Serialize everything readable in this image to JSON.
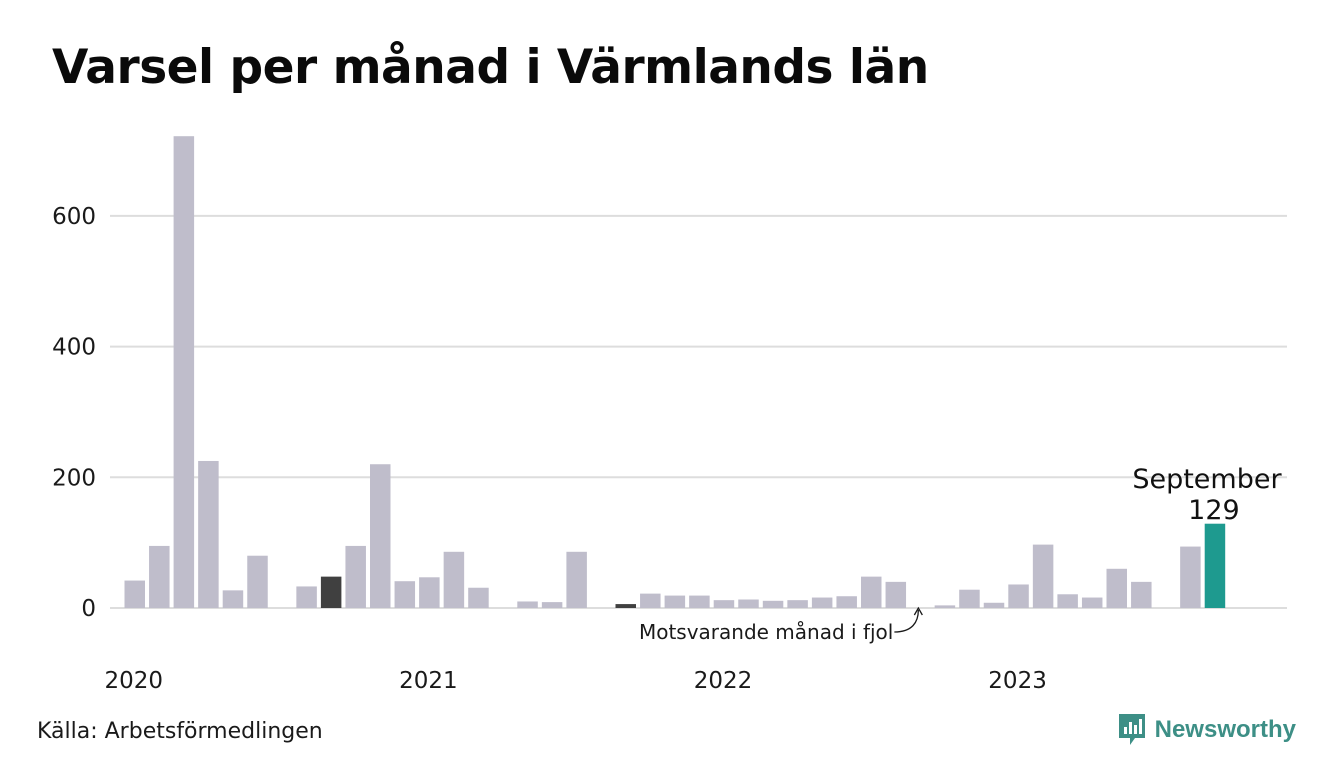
{
  "title": "Varsel per månad i Värmlands län",
  "source": "Källa: Arbetsförmedlingen",
  "brand": {
    "name": "Newsworthy",
    "icon": "bar-chart-speech-icon",
    "color": "#3d8f86"
  },
  "colors": {
    "bar": "#bfbdcb",
    "comparison": "#404040",
    "highlight": "#1e9a8f",
    "grid": "#dddddd"
  },
  "chart_data": {
    "type": "bar",
    "x_ticks": [
      {
        "label": "2020",
        "index": 0
      },
      {
        "label": "2021",
        "index": 12
      },
      {
        "label": "2022",
        "index": 24
      },
      {
        "label": "2023",
        "index": 36
      }
    ],
    "y_ticks": [
      0,
      200,
      400,
      600
    ],
    "ylim": [
      0,
      720
    ],
    "values": [
      42,
      95,
      722,
      225,
      27,
      80,
      null,
      33,
      48,
      95,
      220,
      41,
      47,
      86,
      31,
      null,
      10,
      9,
      86,
      null,
      6,
      22,
      19,
      19,
      12,
      13,
      11,
      12,
      16,
      18,
      48,
      40,
      null,
      4,
      28,
      8,
      36,
      97,
      21,
      16,
      60,
      40,
      null,
      94,
      129
    ],
    "comparison_indices": [
      8,
      20
    ],
    "highlight": {
      "index": 44,
      "month": "September",
      "value": 129
    },
    "annotation": {
      "text": "Motsvarande månad i fjol",
      "index": 32
    },
    "grid": true
  }
}
